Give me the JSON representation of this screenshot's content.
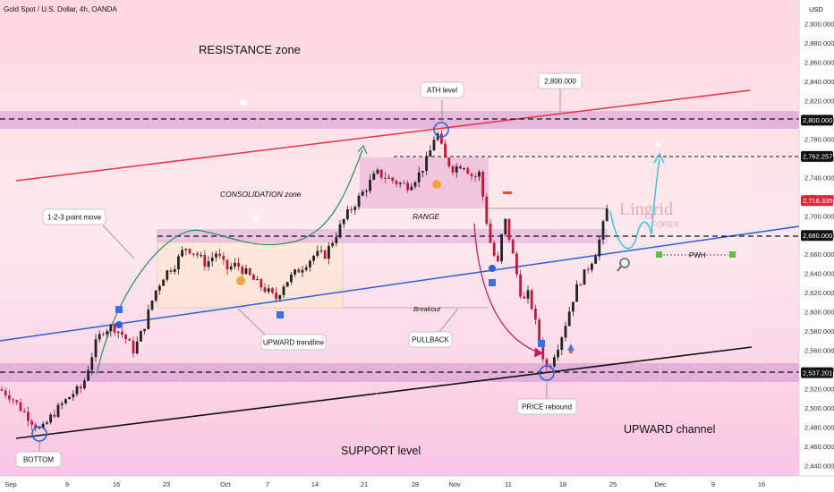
{
  "header": {
    "symbol_line": "Gold Spot / U.S. Dollar, 4h, OANDA",
    "currency": "USD"
  },
  "chart_data": {
    "type": "candlestick",
    "title": "Gold Spot / U.S. Dollar, 4h, OANDA",
    "ylim": [
      2430,
      2918
    ],
    "x_ticks": [
      "Sep",
      "9",
      "16",
      "23",
      "Oct",
      "7",
      "14",
      "21",
      "28",
      "Nov",
      "11",
      "18",
      "25",
      "Dec",
      "9",
      "16"
    ],
    "y_ticks": [
      "2,900.000",
      "2,880.000",
      "2,860.000",
      "2,840.000",
      "2,820.000",
      "2,800.000",
      "2,780.000",
      "2,760.000",
      "2,740.000",
      "2,720.000",
      "2,700.000",
      "2,680.000",
      "2,660.000",
      "2,640.000",
      "2,620.000",
      "2,600.000",
      "2,580.000",
      "2,560.000",
      "2,540.000",
      "2,520.000",
      "2,500.000",
      "2,480.000",
      "2,460.000",
      "2,440.000"
    ],
    "price_badges": [
      {
        "value": "2,800.000",
        "color": "#111111"
      },
      {
        "value": "2,762.257",
        "color": "#111111"
      },
      {
        "value": "2,716.335",
        "color": "#e0283a"
      },
      {
        "value": "2,680.000",
        "color": "#111111"
      },
      {
        "value": "2,537.201",
        "color": "#111111"
      }
    ],
    "levels": [
      2800,
      2762.257,
      2680,
      2537.201
    ],
    "anchors": [
      [
        0,
        2520
      ],
      [
        0.5,
        2513
      ],
      [
        1,
        2500
      ],
      [
        1.5,
        2488
      ],
      [
        2,
        2476
      ],
      [
        2.5,
        2492
      ],
      [
        3,
        2504
      ],
      [
        3.5,
        2515
      ],
      [
        4,
        2522
      ],
      [
        4.6,
        2565
      ],
      [
        5,
        2582
      ],
      [
        5.5,
        2585
      ],
      [
        6,
        2576
      ],
      [
        6.5,
        2560
      ],
      [
        7,
        2585
      ],
      [
        7.5,
        2620
      ],
      [
        8,
        2640
      ],
      [
        8.5,
        2650
      ],
      [
        9,
        2668
      ],
      [
        9.5,
        2662
      ],
      [
        10,
        2650
      ],
      [
        10.5,
        2662
      ],
      [
        11,
        2645
      ],
      [
        11.5,
        2650
      ],
      [
        12,
        2640
      ],
      [
        12.5,
        2630
      ],
      [
        13,
        2622
      ],
      [
        13.4,
        2614
      ],
      [
        13.8,
        2630
      ],
      [
        14.3,
        2640
      ],
      [
        14.8,
        2650
      ],
      [
        15.3,
        2660
      ],
      [
        15.8,
        2660
      ],
      [
        16.3,
        2680
      ],
      [
        16.8,
        2700
      ],
      [
        17.3,
        2715
      ],
      [
        17.8,
        2730
      ],
      [
        18.3,
        2745
      ],
      [
        18.8,
        2740
      ],
      [
        19.3,
        2735
      ],
      [
        19.8,
        2732
      ],
      [
        20.3,
        2742
      ],
      [
        20.8,
        2760
      ],
      [
        21.2,
        2790
      ],
      [
        21.6,
        2760
      ],
      [
        22,
        2750
      ],
      [
        22.5,
        2755
      ],
      [
        23,
        2740
      ],
      [
        23.3,
        2745
      ],
      [
        23.6,
        2700
      ],
      [
        23.9,
        2664
      ],
      [
        24.2,
        2650
      ],
      [
        24.5,
        2700
      ],
      [
        24.8,
        2672
      ],
      [
        25.1,
        2640
      ],
      [
        25.4,
        2610
      ],
      [
        25.7,
        2620
      ],
      [
        26,
        2590
      ],
      [
        26.3,
        2560
      ],
      [
        26.6,
        2540
      ],
      [
        26.9,
        2556
      ],
      [
        27.2,
        2570
      ],
      [
        27.5,
        2590
      ],
      [
        27.8,
        2612
      ],
      [
        28.1,
        2630
      ],
      [
        28.4,
        2640
      ],
      [
        28.7,
        2652
      ],
      [
        29,
        2665
      ],
      [
        29.3,
        2690
      ],
      [
        29.6,
        2716
      ]
    ]
  },
  "annotations": {
    "resistance_zone": "RESISTANCE zone",
    "ath_level": "ATH level",
    "price_2800": "2,800.000",
    "consolidation_zone": "CONSOLIDATION zone",
    "range": "RANGE",
    "point_move": "1-2-3 point move",
    "breakout": "Breakout",
    "upward_trendline": "UPWARD trendline",
    "pullback": "PULLBACK",
    "price_rebound": "PRICE rebound",
    "upward_channel": "UPWARD channel",
    "support_level": "SUPPORT level",
    "bottom": "BOTTOM",
    "pwh": "PWH",
    "brand_name": "Lingrid",
    "brand_sub": "FOREX"
  },
  "colors": {
    "resistance_line": "#e8303f",
    "trendline": "#2f5fd6",
    "support_line": "#111111",
    "projection": "#27c0d4",
    "zone_band": "#d79ad1",
    "curve": "#2a8a6a",
    "pullback_arrow": "#c21d61",
    "candle_up": "#222222",
    "candle_down": "#c0193a"
  }
}
